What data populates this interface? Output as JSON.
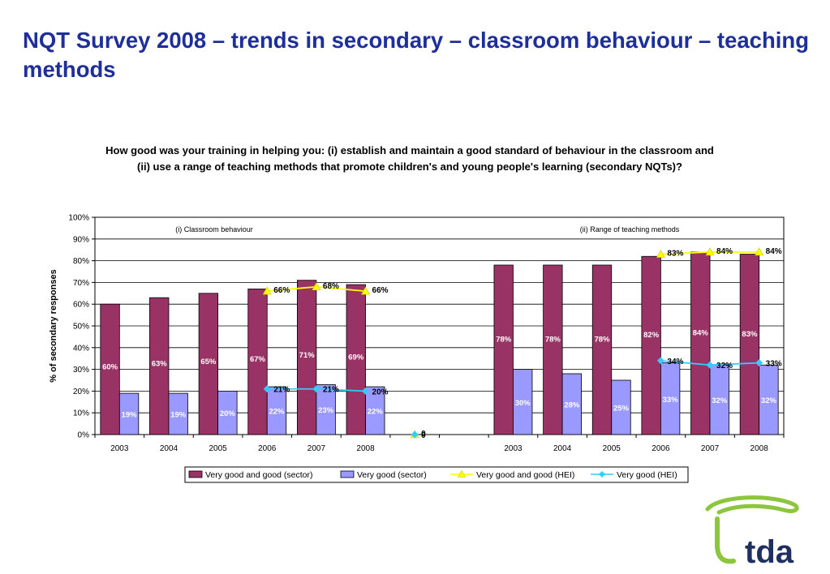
{
  "slide": {
    "title": "NQT Survey 2008 – trends in secondary – classroom behaviour – teaching methods"
  },
  "logo": {
    "text": "tda",
    "color": "#1f2f5f",
    "swoosh_color": "#8cc63f"
  },
  "colors": {
    "bar_sector_good": "#993366",
    "bar_sector_very_good": "#9999ff",
    "line_hei_good": "#ffff00",
    "line_hei_very_good": "#33ccff",
    "title_blue": "#1f2f9a"
  },
  "chart_data": {
    "type": "bar",
    "title": "How good was your training in helping you: (i) establish and maintain a good standard of behaviour in the classroom and (ii) use a range of teaching methods that promote children's and young people's learning (secondary NQTs)?",
    "ylabel": "% of secondary responses",
    "xlabel": "",
    "ylim": [
      0,
      100
    ],
    "y_ticks": [
      "0%",
      "10%",
      "20%",
      "30%",
      "40%",
      "50%",
      "60%",
      "70%",
      "80%",
      "90%",
      "100%"
    ],
    "grid": true,
    "legend_position": "bottom",
    "panel_labels": [
      "(i) Classroom behaviour",
      "(ii) Range of teaching methods"
    ],
    "categories": [
      "2003",
      "2004",
      "2005",
      "2006",
      "2007",
      "2008",
      "",
      "",
      "2003",
      "2004",
      "2005",
      "2006",
      "2007",
      "2008"
    ],
    "series": [
      {
        "name": "Very good and good (sector)",
        "type": "bar",
        "values": [
          60,
          63,
          65,
          67,
          71,
          69,
          null,
          null,
          78,
          78,
          78,
          82,
          84,
          83
        ],
        "labels": [
          "60%",
          "63%",
          "65%",
          "67%",
          "71%",
          "69%",
          "",
          "",
          "78%",
          "78%",
          "78%",
          "82%",
          "84%",
          "83%"
        ]
      },
      {
        "name": "Very good (sector)",
        "type": "bar",
        "values": [
          19,
          19,
          20,
          22,
          23,
          22,
          null,
          null,
          30,
          28,
          25,
          33,
          32,
          32
        ],
        "labels": [
          "19%",
          "19%",
          "20%",
          "22%",
          "23%",
          "22%",
          "",
          "",
          "30%",
          "28%",
          "25%",
          "33%",
          "32%",
          "32%"
        ]
      },
      {
        "name": "Very good and good (HEI)",
        "type": "line",
        "values": [
          null,
          null,
          null,
          66,
          68,
          66,
          0,
          null,
          null,
          null,
          null,
          83,
          84,
          84
        ],
        "labels": [
          "",
          "",
          "",
          "66%",
          "68%",
          "66%",
          "0",
          "",
          "",
          "",
          "",
          "83%",
          "84%",
          "84%"
        ]
      },
      {
        "name": "Very good (HEI)",
        "type": "line",
        "values": [
          null,
          null,
          null,
          21,
          21,
          20,
          0,
          null,
          null,
          null,
          null,
          34,
          32,
          33
        ],
        "labels": [
          "",
          "",
          "",
          "21%",
          "21%",
          "20%",
          "0",
          "",
          "",
          "",
          "",
          "34%",
          "32%",
          "33%"
        ]
      }
    ]
  }
}
